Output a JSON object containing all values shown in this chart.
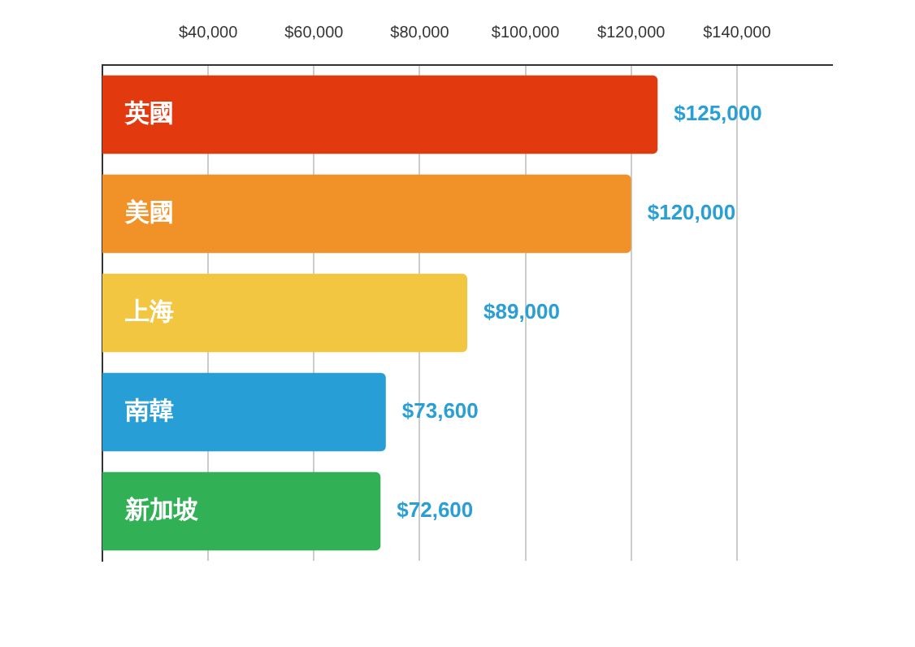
{
  "chart_data": {
    "type": "bar",
    "orientation": "horizontal",
    "categories": [
      "英國",
      "美國",
      "上海",
      "南韓",
      "新加坡"
    ],
    "values": [
      125000,
      120000,
      89000,
      73600,
      72600
    ],
    "colors": [
      "#e2390f",
      "#f09228",
      "#f2c640",
      "#279fd6",
      "#31b055"
    ],
    "value_labels": [
      "$125,000",
      "$120,000",
      "$89,000",
      "$73,600",
      "$72,600"
    ],
    "xlim": [
      20000,
      158000
    ],
    "xticks": [
      {
        "value": 40000,
        "label": "$40,000"
      },
      {
        "value": 60000,
        "label": "$60,000"
      },
      {
        "value": 80000,
        "label": "$80,000"
      },
      {
        "value": 100000,
        "label": "$100,000"
      },
      {
        "value": 120000,
        "label": "$120,000"
      },
      {
        "value": 140000,
        "label": "$140,000"
      }
    ],
    "grid": "x",
    "legend": false
  }
}
